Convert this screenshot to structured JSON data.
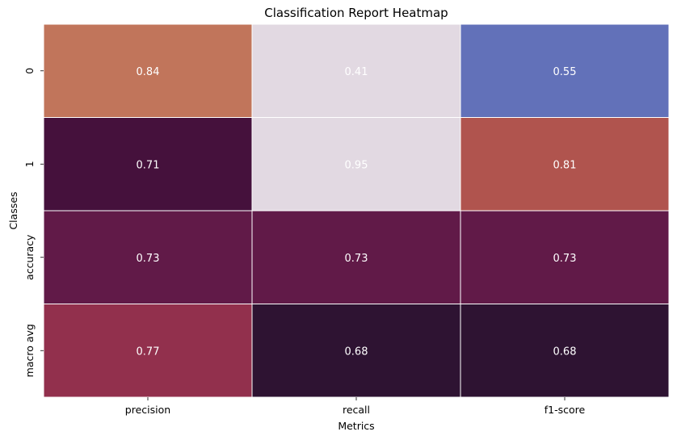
{
  "chart_data": {
    "type": "heatmap",
    "title": "Classification Report Heatmap",
    "xlabel": "Metrics",
    "ylabel": "Classes",
    "columns": [
      "precision",
      "recall",
      "f1-score"
    ],
    "rows": [
      "0",
      "1",
      "accuracy",
      "macro avg"
    ],
    "values": [
      [
        0.84,
        0.41,
        0.55
      ],
      [
        0.71,
        0.95,
        0.81
      ],
      [
        0.73,
        0.73,
        0.73
      ],
      [
        0.77,
        0.68,
        0.68
      ]
    ],
    "cell_colors": [
      [
        "#c1755b",
        "#e2d9e2",
        "#6271b9"
      ],
      [
        "#45113c",
        "#e2d9e2",
        "#b0544e"
      ],
      [
        "#611a48",
        "#611a48",
        "#611a48"
      ],
      [
        "#92304d",
        "#2e1332",
        "#2e1332"
      ]
    ],
    "cell_text_color": "#ffffff",
    "colorbar": false
  }
}
